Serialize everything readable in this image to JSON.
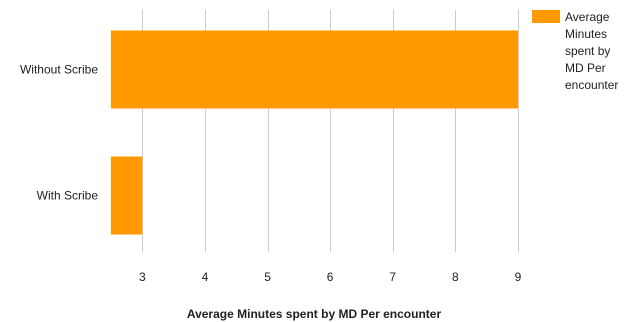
{
  "chart_data": {
    "type": "bar",
    "orientation": "horizontal",
    "categories": [
      "Without Scribe",
      "With Scribe"
    ],
    "series": [
      {
        "name": "Average Minutes spent by MD Per encounter",
        "values": [
          9,
          3
        ],
        "color": "#ff9900"
      }
    ],
    "title": "",
    "xlabel": "Average Minutes spent by MD Per encounter",
    "ylabel": "",
    "xlim": [
      2.5,
      9.5
    ],
    "xticks": [
      3,
      4,
      5,
      6,
      7,
      8,
      9
    ],
    "grid": true,
    "legend": "top-right",
    "legend_lines": [
      "Average",
      "Minutes",
      "spent by",
      "MD Per",
      "encounter"
    ]
  }
}
